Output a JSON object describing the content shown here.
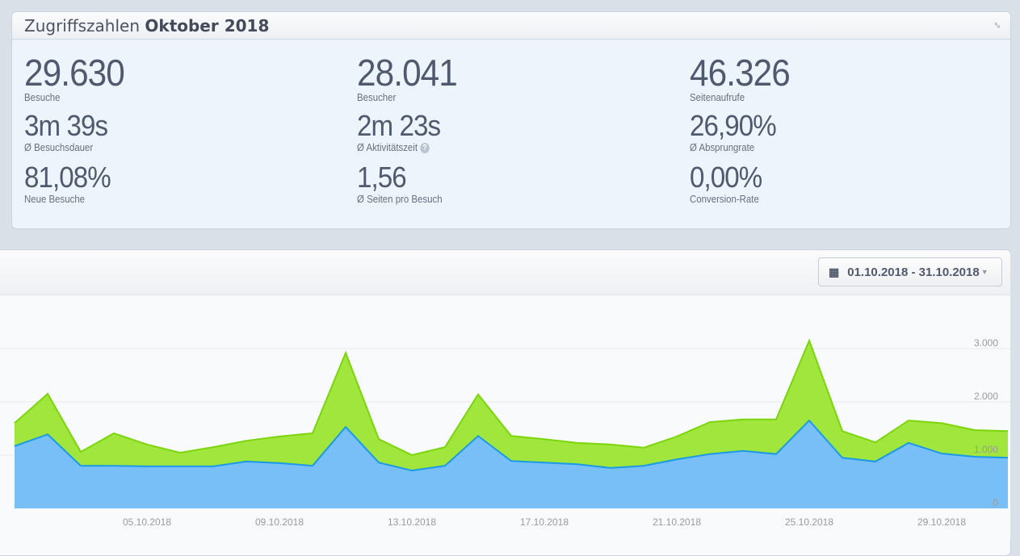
{
  "summary": {
    "title_prefix": "Zugriffszahlen",
    "title_bold": "Oktober 2018",
    "metrics": [
      {
        "value": "29.630",
        "label": "Besuche"
      },
      {
        "value": "28.041",
        "label": "Besucher"
      },
      {
        "value": "46.326",
        "label": "Seitenaufrufe"
      },
      {
        "value": "3m 39s",
        "label": "Ø Besuchsdauer"
      },
      {
        "value": "2m 23s",
        "label": "Ø Aktivitätszeit",
        "help": "?"
      },
      {
        "value": "26,90%",
        "label": "Ø Absprungrate"
      },
      {
        "value": "81,08%",
        "label": "Neue Besuche"
      },
      {
        "value": "1,56",
        "label": "Ø Seiten pro Besuch"
      },
      {
        "value": "0,00%",
        "label": "Conversion-Rate"
      }
    ]
  },
  "date_range": "01.10.2018 - 31.10.2018",
  "chart_data": {
    "type": "area",
    "x": [
      "01.10.2018",
      "02.10.2018",
      "03.10.2018",
      "04.10.2018",
      "05.10.2018",
      "06.10.2018",
      "07.10.2018",
      "08.10.2018",
      "09.10.2018",
      "10.10.2018",
      "11.10.2018",
      "12.10.2018",
      "13.10.2018",
      "14.10.2018",
      "15.10.2018",
      "16.10.2018",
      "17.10.2018",
      "18.10.2018",
      "19.10.2018",
      "20.10.2018",
      "21.10.2018",
      "22.10.2018",
      "23.10.2018",
      "24.10.2018",
      "25.10.2018",
      "26.10.2018",
      "27.10.2018",
      "28.10.2018",
      "29.10.2018",
      "30.10.2018",
      "31.10.2018"
    ],
    "xticks": [
      "05.10.2018",
      "09.10.2018",
      "13.10.2018",
      "17.10.2018",
      "21.10.2018",
      "25.10.2018",
      "29.10.2018"
    ],
    "yticks": [
      "0",
      "1.000",
      "2.000",
      "3.000"
    ],
    "ylim": [
      0,
      3500
    ],
    "series": [
      {
        "name": "Seitenaufrufe",
        "color": "#a1e63c",
        "line": "#7ad60a",
        "values": [
          1600,
          2150,
          1060,
          1410,
          1200,
          1045,
          1150,
          1270,
          1350,
          1410,
          2920,
          1300,
          1000,
          1150,
          2140,
          1360,
          1300,
          1230,
          1200,
          1140,
          1350,
          1620,
          1670,
          1670,
          3150,
          1450,
          1240,
          1650,
          1600,
          1470,
          1450
        ]
      },
      {
        "name": "Besuche",
        "color": "#78bff8",
        "line": "#1a9ae6",
        "values": [
          1170,
          1390,
          800,
          800,
          790,
          790,
          790,
          880,
          850,
          800,
          1530,
          860,
          710,
          800,
          1360,
          890,
          860,
          830,
          760,
          800,
          920,
          1020,
          1080,
          1020,
          1650,
          950,
          880,
          1230,
          1030,
          970,
          950
        ]
      }
    ]
  }
}
